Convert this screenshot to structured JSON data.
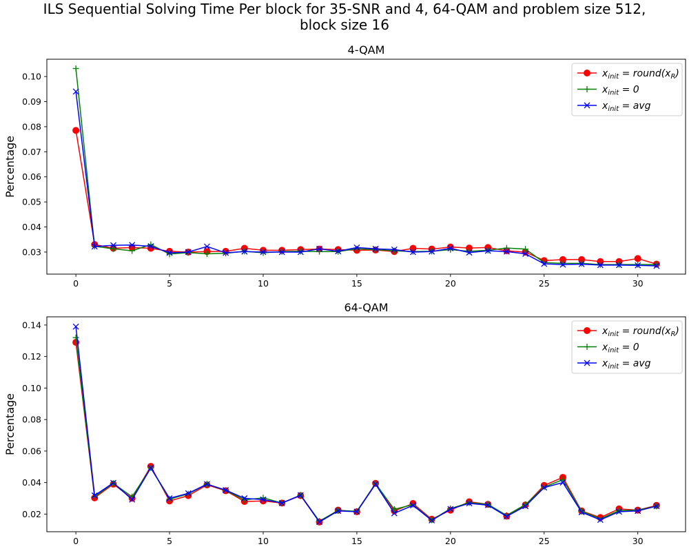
{
  "figure": {
    "title_line1": "ILS Sequential Solving Time Per block for 35-SNR and 4, 64-QAM and problem size 512,",
    "title_line2": "block size 16"
  },
  "legend_entries": [
    {
      "base": "x",
      "sub": "init",
      "rest": " = round(x",
      "sub2": "R",
      "tail": ")",
      "color": "#ff0000",
      "marker": "circle"
    },
    {
      "base": "x",
      "sub": "init",
      "rest": " = 0",
      "sub2": "",
      "tail": "",
      "color": "#008000",
      "marker": "plus"
    },
    {
      "base": "x",
      "sub": "init",
      "rest": " = avg",
      "sub2": "",
      "tail": "",
      "color": "#0000ff",
      "marker": "x"
    }
  ],
  "chart_data": [
    {
      "type": "line",
      "title": "4-QAM",
      "xlabel": "",
      "ylabel": "Percentage",
      "xlim": [
        -1.55,
        32.55
      ],
      "ylim": [
        0.0212,
        0.1069
      ],
      "xticks": [
        0,
        5,
        10,
        15,
        20,
        25,
        30
      ],
      "yticks": [
        0.03,
        0.04,
        0.05,
        0.06,
        0.07,
        0.08,
        0.09,
        0.1
      ],
      "ytick_labels": [
        "0.03",
        "0.04",
        "0.05",
        "0.06",
        "0.07",
        "0.08",
        "0.09",
        "0.10"
      ],
      "legend_position": "upper right",
      "grid": false,
      "x": [
        0,
        1,
        2,
        3,
        4,
        5,
        6,
        7,
        8,
        9,
        10,
        11,
        12,
        13,
        14,
        15,
        16,
        17,
        18,
        19,
        20,
        21,
        22,
        23,
        24,
        25,
        26,
        27,
        28,
        29,
        30,
        31
      ],
      "series": [
        {
          "name": "x_init = round(x_R)",
          "color": "#ff0000",
          "marker": "circle",
          "values": [
            0.0785,
            0.033,
            0.0315,
            0.0318,
            0.0315,
            0.0303,
            0.03,
            0.0302,
            0.0303,
            0.0315,
            0.0307,
            0.0307,
            0.031,
            0.0312,
            0.031,
            0.0307,
            0.0308,
            0.0302,
            0.0315,
            0.0312,
            0.032,
            0.0316,
            0.0318,
            0.0305,
            0.03,
            0.0266,
            0.027,
            0.027,
            0.0262,
            0.0262,
            0.0274,
            0.0252
          ]
        },
        {
          "name": "x_init = 0",
          "color": "#008000",
          "marker": "plus",
          "values": [
            0.1032,
            0.0323,
            0.0313,
            0.0305,
            0.033,
            0.0292,
            0.0298,
            0.0293,
            0.0295,
            0.0303,
            0.0297,
            0.0302,
            0.0303,
            0.0302,
            0.0302,
            0.0313,
            0.031,
            0.0305,
            0.0302,
            0.0303,
            0.031,
            0.0303,
            0.0307,
            0.0316,
            0.0312,
            0.0258,
            0.0255,
            0.0255,
            0.025,
            0.025,
            0.025,
            0.025
          ]
        },
        {
          "name": "x_init = avg",
          "color": "#0000ff",
          "marker": "x",
          "values": [
            0.094,
            0.0322,
            0.0327,
            0.0328,
            0.0323,
            0.0297,
            0.03,
            0.0322,
            0.0297,
            0.0302,
            0.03,
            0.03,
            0.03,
            0.0313,
            0.0303,
            0.0318,
            0.0313,
            0.031,
            0.03,
            0.0302,
            0.0315,
            0.0298,
            0.0305,
            0.0302,
            0.0293,
            0.0253,
            0.025,
            0.0252,
            0.0248,
            0.0248,
            0.0247,
            0.0245
          ]
        }
      ]
    },
    {
      "type": "line",
      "title": "64-QAM",
      "xlabel": "",
      "ylabel": "Percentage",
      "xlim": [
        -1.55,
        32.55
      ],
      "ylim": [
        0.0088,
        0.1452
      ],
      "xticks": [
        0,
        5,
        10,
        15,
        20,
        25,
        30
      ],
      "yticks": [
        0.02,
        0.04,
        0.06,
        0.08,
        0.1,
        0.12,
        0.14
      ],
      "ytick_labels": [
        "0.02",
        "0.04",
        "0.06",
        "0.08",
        "0.10",
        "0.12",
        "0.14"
      ],
      "legend_position": "upper right",
      "grid": false,
      "x": [
        0,
        1,
        2,
        3,
        4,
        5,
        6,
        7,
        8,
        9,
        10,
        11,
        12,
        13,
        14,
        15,
        16,
        17,
        18,
        19,
        20,
        21,
        22,
        23,
        24,
        25,
        26,
        27,
        28,
        29,
        30,
        31
      ],
      "series": [
        {
          "name": "x_init = round(x_R)",
          "color": "#ff0000",
          "marker": "circle",
          "values": [
            0.129,
            0.0303,
            0.039,
            0.03,
            0.0503,
            0.0283,
            0.0317,
            0.0385,
            0.0348,
            0.028,
            0.0283,
            0.027,
            0.0317,
            0.015,
            0.0225,
            0.0215,
            0.0395,
            0.022,
            0.0267,
            0.0167,
            0.0225,
            0.0278,
            0.0262,
            0.0187,
            0.0258,
            0.0382,
            0.0433,
            0.022,
            0.0178,
            0.0233,
            0.0225,
            0.0255
          ]
        },
        {
          "name": "x_init = 0",
          "color": "#008000",
          "marker": "plus",
          "values": [
            0.132,
            0.031,
            0.0395,
            0.031,
            0.0493,
            0.0295,
            0.0328,
            0.039,
            0.035,
            0.029,
            0.0303,
            0.027,
            0.032,
            0.0155,
            0.0223,
            0.0218,
            0.0393,
            0.023,
            0.026,
            0.0162,
            0.0235,
            0.0272,
            0.0262,
            0.0192,
            0.026,
            0.0372,
            0.0418,
            0.0218,
            0.017,
            0.0222,
            0.0225,
            0.025
          ]
        },
        {
          "name": "x_init = avg",
          "color": "#0000ff",
          "marker": "x",
          "values": [
            0.139,
            0.0318,
            0.0398,
            0.0292,
            0.0493,
            0.03,
            0.0332,
            0.039,
            0.0352,
            0.03,
            0.0292,
            0.027,
            0.032,
            0.015,
            0.022,
            0.0215,
            0.039,
            0.0205,
            0.0255,
            0.016,
            0.0232,
            0.0268,
            0.0257,
            0.0185,
            0.025,
            0.0368,
            0.04,
            0.0212,
            0.0163,
            0.0215,
            0.022,
            0.025
          ]
        }
      ]
    }
  ]
}
